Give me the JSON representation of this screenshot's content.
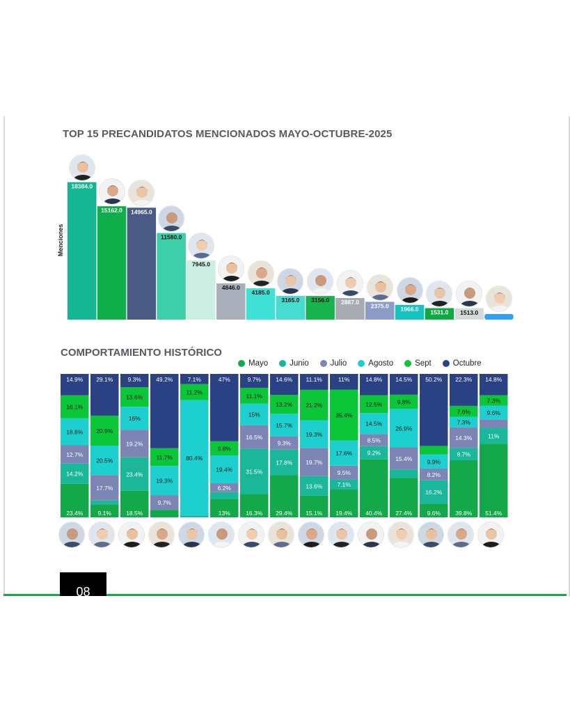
{
  "page": {
    "title": "TOP 15 PRECANDIDATOS  MENCIONADOS MAYO-OCTUBRE-2025",
    "subtitle": "COMPORTAMIENTO HISTÓRICO",
    "page_number": "08"
  },
  "chart_data": [
    {
      "type": "bar",
      "ylabel": "Menciones",
      "values": [
        18384.0,
        15162.0,
        14965.0,
        11580.0,
        7945.0,
        4846.0,
        4185.0,
        3165.0,
        3156.0,
        2887.0,
        2375.0,
        1966.0,
        1531.0,
        1513.0,
        null
      ],
      "value_labels": [
        "18384.0",
        "15162.0",
        "14965.0",
        "11580.0",
        "7945.0",
        "4846.0",
        "4185.0",
        "3165.0",
        "3156.0",
        "2887.0",
        "2375.0",
        "1966.0",
        "1531.0",
        "1513.0",
        ""
      ],
      "colors": [
        "#13b593",
        "#0fae4b",
        "#4b5a84",
        "#3ccfaa",
        "#cdeee2",
        "#a8afba",
        "#3fe0d6",
        "#46dccf",
        "#17b34d",
        "#a7abb2",
        "#8c9bc7",
        "#17c3c1",
        "#0ea845",
        "#d4dad8",
        "#2ea3f5"
      ],
      "ylim": [
        0,
        19000
      ]
    },
    {
      "type": "bar",
      "stacked": true,
      "normalized": true,
      "series_names": [
        "Mayo",
        "Junio",
        "Julio",
        "Agosto",
        "Sept",
        "Octubre"
      ],
      "colors": {
        "Mayo": "#13a84a",
        "Junio": "#1bb79a",
        "Julio": "#7d85b5",
        "Agosto": "#1dcfcf",
        "Sept": "#0cc63a",
        "Octubre": "#2a4184"
      },
      "columns": [
        {
          "Mayo": 23.4,
          "Junio": 14.2,
          "Julio": 12.7,
          "Agosto": 18.8,
          "Sept": 16.1,
          "Octubre": 14.9
        },
        {
          "Mayo": 9.1,
          "Junio": 2.7,
          "Julio": 17.7,
          "Agosto": 20.5,
          "Sept": 20.9,
          "Octubre": 29.1
        },
        {
          "Mayo": 18.5,
          "Junio": 23.4,
          "Julio": 19.2,
          "Agosto": 16.0,
          "Sept": 13.6,
          "Octubre": 9.3
        },
        {
          "Mayo": 5.0,
          "Junio": 0.0,
          "Julio": 9.7,
          "Agosto": 19.3,
          "Sept": 11.7,
          "Octubre": 49.2
        },
        {
          "Mayo": 0.0,
          "Junio": 1.3,
          "Julio": 0.0,
          "Agosto": 80.4,
          "Sept": 11.2,
          "Octubre": 7.1
        },
        {
          "Mayo": 13.0,
          "Junio": 4.6,
          "Julio": 6.2,
          "Agosto": 19.4,
          "Sept": 9.8,
          "Octubre": 47.0
        },
        {
          "Mayo": 16.3,
          "Junio": 31.5,
          "Julio": 16.5,
          "Agosto": 15.0,
          "Sept": 11.1,
          "Octubre": 9.7
        },
        {
          "Mayo": 29.4,
          "Junio": 17.8,
          "Julio": 9.3,
          "Agosto": 15.7,
          "Sept": 13.2,
          "Octubre": 14.6
        },
        {
          "Mayo": 15.1,
          "Junio": 13.6,
          "Julio": 19.7,
          "Agosto": 19.3,
          "Sept": 21.2,
          "Octubre": 11.1
        },
        {
          "Mayo": 19.4,
          "Junio": 7.1,
          "Julio": 9.5,
          "Agosto": 17.6,
          "Sept": 35.4,
          "Octubre": 11.0
        },
        {
          "Mayo": 40.4,
          "Junio": 9.2,
          "Julio": 8.5,
          "Agosto": 14.5,
          "Sept": 12.5,
          "Octubre": 14.8
        },
        {
          "Mayo": 27.4,
          "Junio": 6.0,
          "Julio": 15.4,
          "Agosto": 26.9,
          "Sept": 9.8,
          "Octubre": 14.5
        },
        {
          "Mayo": 9.6,
          "Junio": 16.2,
          "Julio": 8.2,
          "Agosto": 9.9,
          "Sept": 5.9,
          "Octubre": 50.2
        },
        {
          "Mayo": 39.8,
          "Junio": 8.7,
          "Julio": 14.3,
          "Agosto": 7.3,
          "Sept": 7.6,
          "Octubre": 22.3
        },
        {
          "Mayo": 51.4,
          "Junio": 11.0,
          "Julio": 5.9,
          "Agosto": 9.6,
          "Sept": 7.3,
          "Octubre": 14.8
        }
      ],
      "labels": [
        {
          "Mayo": "23.4%",
          "Junio": "14.2%",
          "Julio": "12.7%",
          "Agosto": "18.8%",
          "Sept": "16.1%",
          "Octubre": "14.9%"
        },
        {
          "Mayo": "9.1%",
          "Julio": "17.7%",
          "Agosto": "20.5%",
          "Sept": "20.9%",
          "Octubre": "29.1%"
        },
        {
          "Mayo": "18.5%",
          "Junio": "23.4%",
          "Julio": "19.2%",
          "Agosto": "16%",
          "Sept": "13.6%",
          "Octubre": "9.3%"
        },
        {
          "Julio": "9.7%",
          "Agosto": "19.3%",
          "Sept": "11.7%",
          "Octubre": "49.2%"
        },
        {
          "Agosto": "80.4%",
          "Sept": "11.2%",
          "Octubre": "7.1%"
        },
        {
          "Mayo": "13%",
          "Julio": "6.2%",
          "Agosto": "19.4%",
          "Sept": "9.8%",
          "Octubre": "47%"
        },
        {
          "Mayo": "16.3%",
          "Junio": "31.5%",
          "Julio": "16.5%",
          "Agosto": "15%",
          "Sept": "11.1%",
          "Octubre": "9.7%"
        },
        {
          "Mayo": "29.4%",
          "Junio": "17.8%",
          "Julio": "9.3%",
          "Agosto": "15.7%",
          "Sept": "13.2%",
          "Octubre": "14.6%"
        },
        {
          "Mayo": "15.1%",
          "Junio": "13.6%",
          "Julio": "19.7%",
          "Agosto": "19.3%",
          "Sept": "21.2%",
          "Octubre": "11.1%"
        },
        {
          "Mayo": "19.4%",
          "Junio": "7.1%",
          "Julio": "9.5%",
          "Agosto": "17.6%",
          "Sept": "35.4%",
          "Octubre": "11%"
        },
        {
          "Mayo": "40.4%",
          "Junio": "9.2%",
          "Julio": "8.5%",
          "Agosto": "14.5%",
          "Sept": "12.5%",
          "Octubre": "14.8%"
        },
        {
          "Mayo": "27.4%",
          "Julio": "15.4%",
          "Agosto": "26.9%",
          "Sept": "9.8%",
          "Octubre": "14.5%"
        },
        {
          "Mayo": "9.6%",
          "Junio": "16.2%",
          "Julio": "8.2%",
          "Agosto": "9.9%",
          "Octubre": "50.2%"
        },
        {
          "Mayo": "39.8%",
          "Junio": "8.7%",
          "Julio": "14.3%",
          "Agosto": "7.3%",
          "Sept": "7.6%",
          "Octubre": "22.3%"
        },
        {
          "Mayo": "51.4%",
          "Junio": "11%",
          "Agosto": "9.6%",
          "Sept": "7.3%",
          "Octubre": "14.8%"
        }
      ],
      "label_colors": {
        "Octubre": "#ffffff",
        "Julio": "#ffffff",
        "Junio": "#ffffff",
        "Mayo": "#ffffff",
        "Agosto": "#1a1a1a",
        "Sept": "#1a1a1a"
      }
    }
  ],
  "icons": {
    "candidate_photo": "candidate-photo-icon"
  }
}
